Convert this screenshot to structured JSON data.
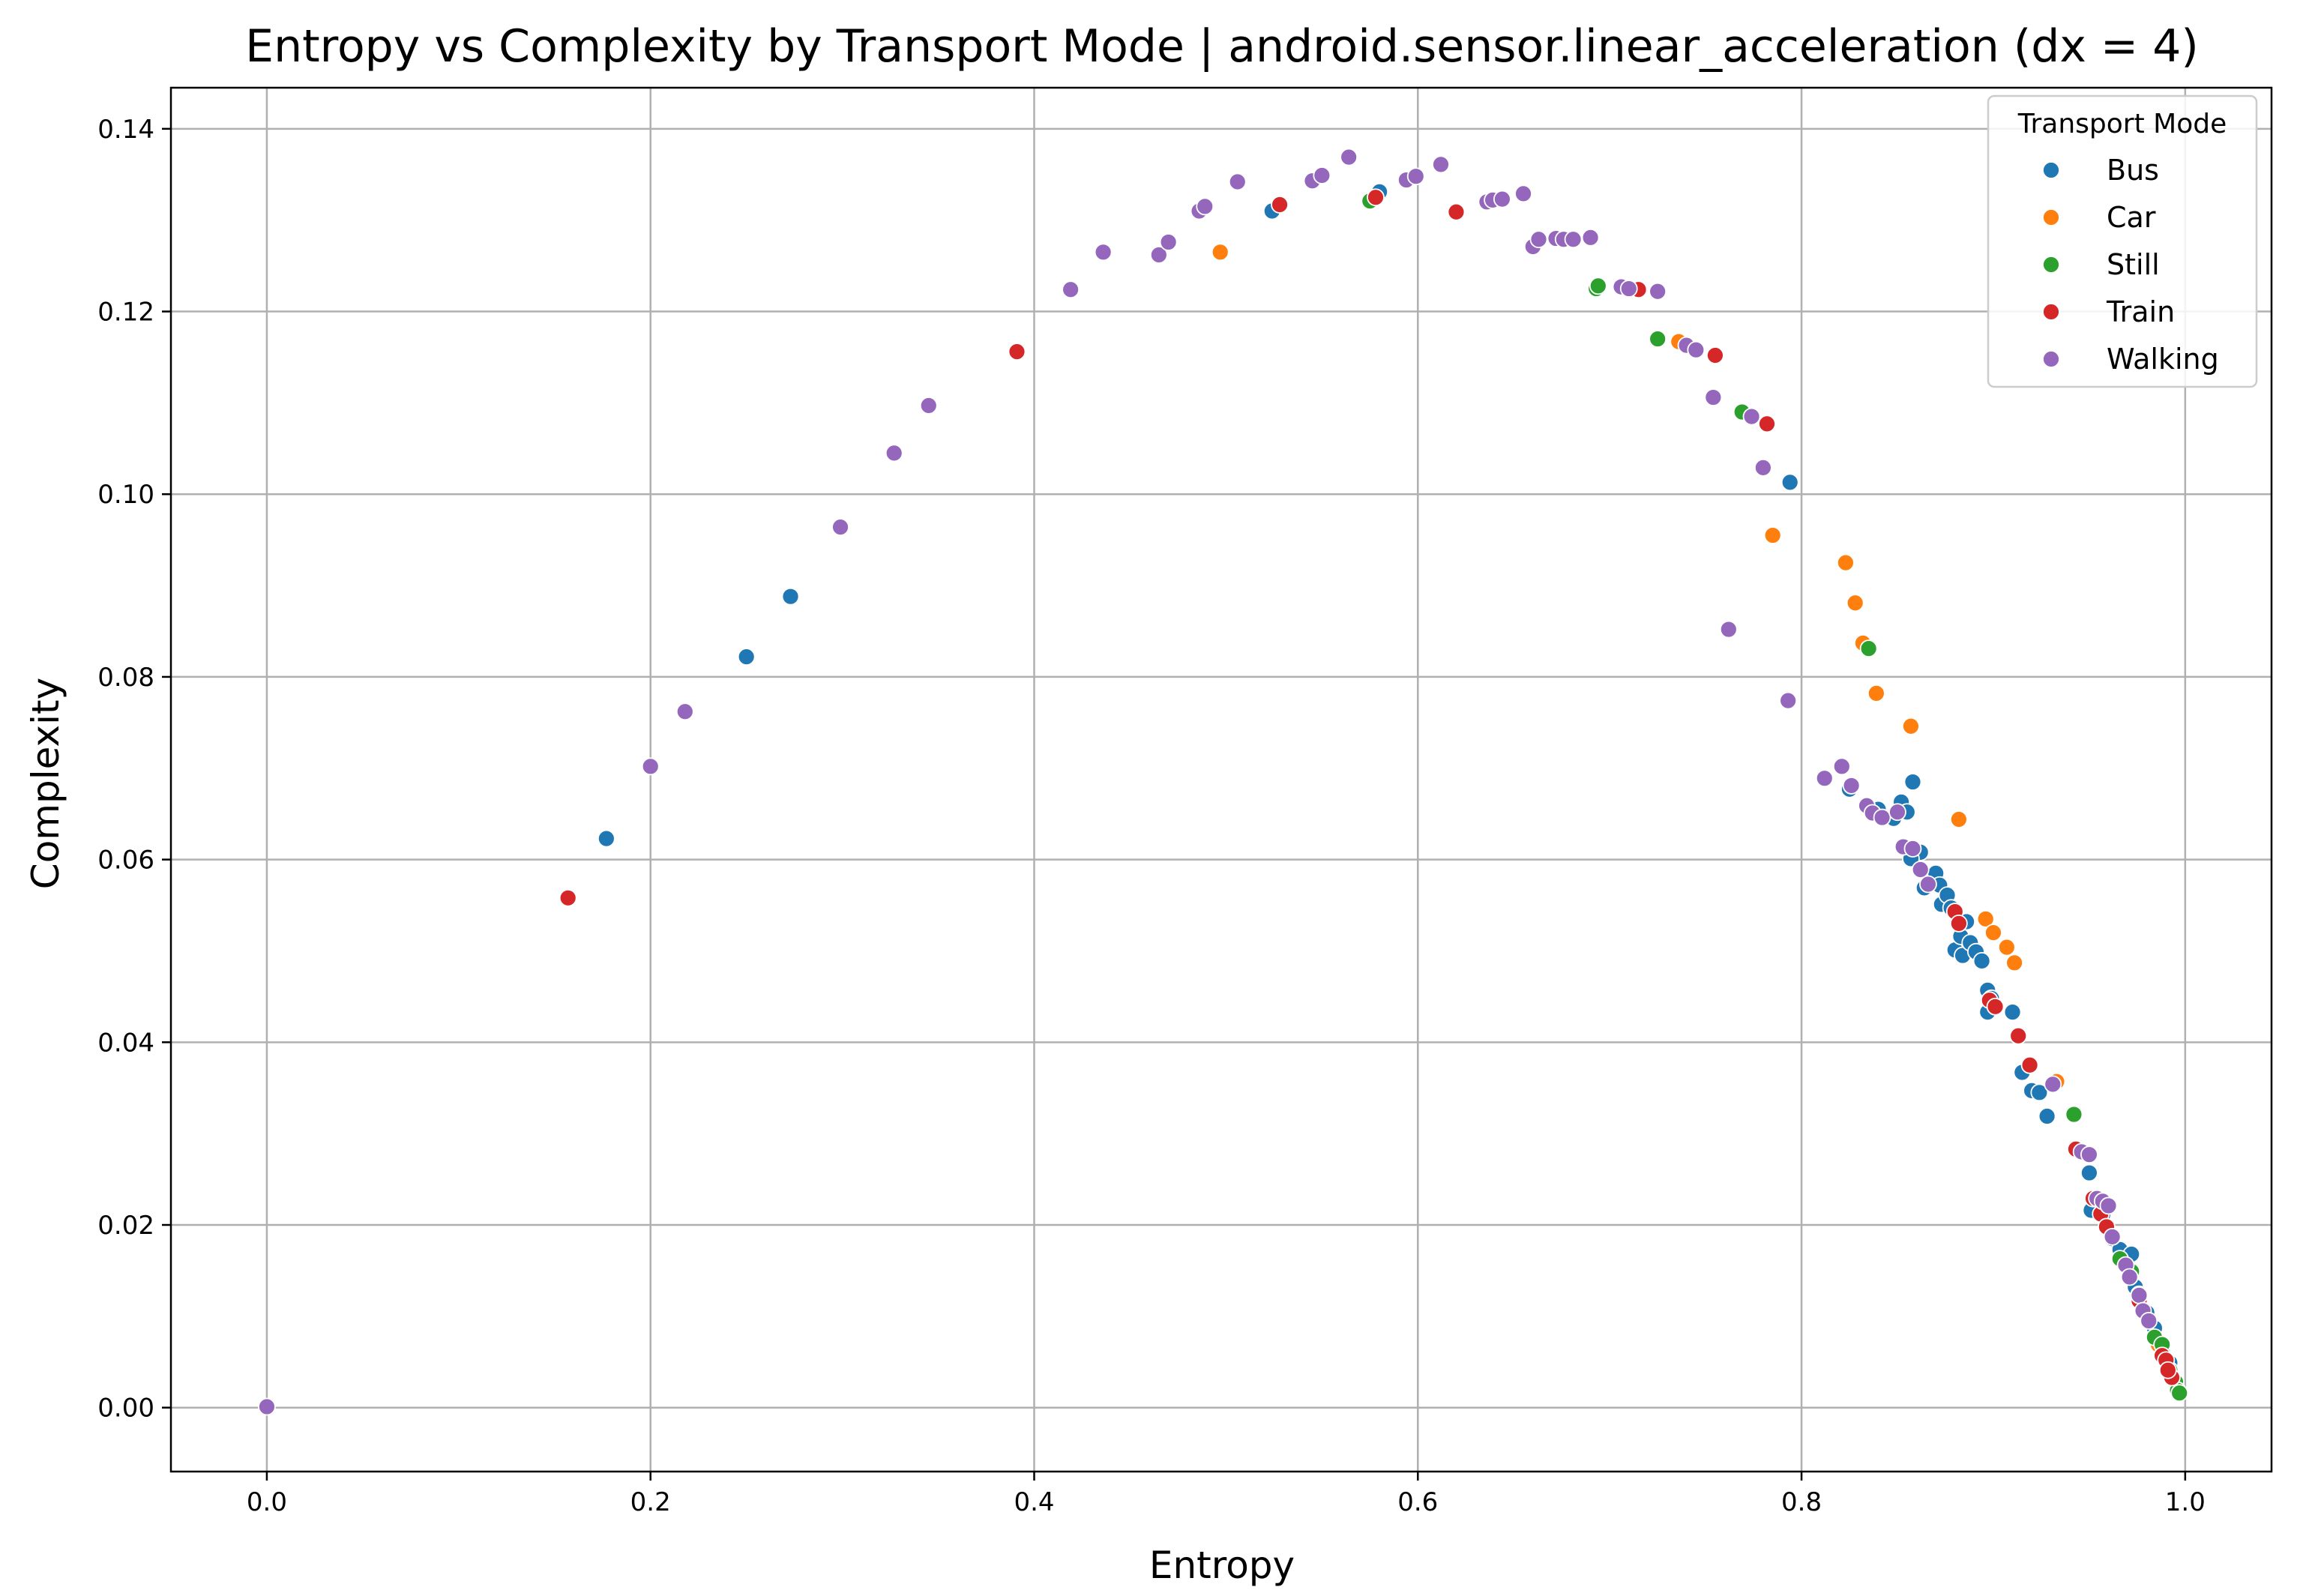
{
  "chart_data": {
    "type": "scatter",
    "title": "Entropy vs Complexity by Transport Mode | android.sensor.linear_acceleration (dx = 4)",
    "xlabel": "Entropy",
    "ylabel": "Complexity",
    "xlim": [
      -0.05,
      1.045
    ],
    "ylim": [
      -0.007,
      0.1445
    ],
    "xticks": [
      0.0,
      0.2,
      0.4,
      0.6,
      0.8,
      1.0
    ],
    "xtick_labels": [
      "0.0",
      "0.2",
      "0.4",
      "0.6",
      "0.8",
      "1.0"
    ],
    "yticks": [
      0.0,
      0.02,
      0.04,
      0.06,
      0.08,
      0.1,
      0.12,
      0.14
    ],
    "ytick_labels": [
      "0.00",
      "0.02",
      "0.04",
      "0.06",
      "0.08",
      "0.10",
      "0.12",
      "0.14"
    ],
    "grid": true,
    "legend": {
      "title": "Transport Mode",
      "position": "top-right"
    },
    "series": [
      {
        "name": "Bus",
        "color": "#1f77b4",
        "points": [
          [
            0.177,
            0.0623
          ],
          [
            0.25,
            0.0822
          ],
          [
            0.273,
            0.0888
          ],
          [
            0.524,
            0.131
          ],
          [
            0.58,
            0.1331
          ],
          [
            0.794,
            0.1013
          ],
          [
            0.825,
            0.0677
          ],
          [
            0.84,
            0.0655
          ],
          [
            0.848,
            0.0645
          ],
          [
            0.852,
            0.0663
          ],
          [
            0.855,
            0.0652
          ],
          [
            0.858,
            0.0685
          ],
          [
            0.862,
            0.0608
          ],
          [
            0.857,
            0.0601
          ],
          [
            0.864,
            0.0569
          ],
          [
            0.87,
            0.0585
          ],
          [
            0.872,
            0.0572
          ],
          [
            0.873,
            0.0551
          ],
          [
            0.876,
            0.0561
          ],
          [
            0.878,
            0.0547
          ],
          [
            0.88,
            0.0501
          ],
          [
            0.883,
            0.0516
          ],
          [
            0.886,
            0.0532
          ],
          [
            0.884,
            0.0495
          ],
          [
            0.888,
            0.0509
          ],
          [
            0.891,
            0.0499
          ],
          [
            0.894,
            0.0489
          ],
          [
            0.897,
            0.0457
          ],
          [
            0.899,
            0.0448
          ],
          [
            0.897,
            0.0433
          ],
          [
            0.91,
            0.0433
          ],
          [
            0.915,
            0.0367
          ],
          [
            0.92,
            0.0347
          ],
          [
            0.924,
            0.0345
          ],
          [
            0.928,
            0.0319
          ],
          [
            0.95,
            0.0257
          ],
          [
            0.951,
            0.0216
          ],
          [
            0.954,
            0.0229
          ],
          [
            0.957,
            0.0211
          ],
          [
            0.962,
            0.0185
          ],
          [
            0.966,
            0.0173
          ],
          [
            0.969,
            0.0162
          ],
          [
            0.972,
            0.0168
          ],
          [
            0.974,
            0.0132
          ],
          [
            0.98,
            0.0104
          ],
          [
            0.984,
            0.0087
          ],
          [
            0.988,
            0.0062
          ],
          [
            0.992,
            0.0049
          ]
        ]
      },
      {
        "name": "Car",
        "color": "#ff7f0e",
        "points": [
          [
            0.497,
            0.1265
          ],
          [
            0.736,
            0.1167
          ],
          [
            0.785,
            0.0955
          ],
          [
            0.823,
            0.0925
          ],
          [
            0.828,
            0.0881
          ],
          [
            0.832,
            0.0837
          ],
          [
            0.839,
            0.0782
          ],
          [
            0.857,
            0.0746
          ],
          [
            0.882,
            0.0644
          ],
          [
            0.896,
            0.0535
          ],
          [
            0.9,
            0.052
          ],
          [
            0.907,
            0.0504
          ],
          [
            0.911,
            0.0487
          ],
          [
            0.933,
            0.0357
          ],
          [
            0.968,
            0.0157
          ],
          [
            0.976,
            0.0124
          ],
          [
            0.986,
            0.0069
          ]
        ]
      },
      {
        "name": "Still",
        "color": "#2ca02c",
        "points": [
          [
            0.575,
            0.1321
          ],
          [
            0.693,
            0.1225
          ],
          [
            0.694,
            0.1228
          ],
          [
            0.725,
            0.117
          ],
          [
            0.769,
            0.109
          ],
          [
            0.835,
            0.0831
          ],
          [
            0.942,
            0.0321
          ],
          [
            0.966,
            0.0163
          ],
          [
            0.972,
            0.0149
          ],
          [
            0.976,
            0.0121
          ],
          [
            0.984,
            0.0077
          ],
          [
            0.988,
            0.0069
          ],
          [
            0.992,
            0.0041
          ],
          [
            0.995,
            0.0028
          ],
          [
            0.996,
            0.0019
          ],
          [
            0.997,
            0.0016
          ],
          [
            0.99,
            0.0052
          ]
        ]
      },
      {
        "name": "Train",
        "color": "#d62728",
        "points": [
          [
            0.157,
            0.0558
          ],
          [
            0.391,
            0.1156
          ],
          [
            0.528,
            0.1317
          ],
          [
            0.578,
            0.1325
          ],
          [
            0.62,
            0.1309
          ],
          [
            0.715,
            0.1224
          ],
          [
            0.755,
            0.1152
          ],
          [
            0.782,
            0.1077
          ],
          [
            0.88,
            0.0543
          ],
          [
            0.882,
            0.053
          ],
          [
            0.898,
            0.0446
          ],
          [
            0.901,
            0.0439
          ],
          [
            0.913,
            0.0407
          ],
          [
            0.919,
            0.0375
          ],
          [
            0.943,
            0.0283
          ],
          [
            0.952,
            0.0229
          ],
          [
            0.956,
            0.0212
          ],
          [
            0.959,
            0.0198
          ],
          [
            0.976,
            0.0117
          ],
          [
            0.988,
            0.0057
          ],
          [
            0.99,
            0.0052
          ],
          [
            0.993,
            0.0033
          ],
          [
            0.991,
            0.0041
          ]
        ]
      },
      {
        "name": "Walking",
        "color": "#9467bd",
        "points": [
          [
            0.0,
            0.0001
          ],
          [
            0.2,
            0.0702
          ],
          [
            0.218,
            0.0762
          ],
          [
            0.299,
            0.0964
          ],
          [
            0.327,
            0.1045
          ],
          [
            0.345,
            0.1097
          ],
          [
            0.419,
            0.1224
          ],
          [
            0.436,
            0.1265
          ],
          [
            0.465,
            0.1262
          ],
          [
            0.47,
            0.1276
          ],
          [
            0.486,
            0.131
          ],
          [
            0.489,
            0.1315
          ],
          [
            0.506,
            0.1342
          ],
          [
            0.545,
            0.1343
          ],
          [
            0.55,
            0.1349
          ],
          [
            0.564,
            0.1369
          ],
          [
            0.594,
            0.1344
          ],
          [
            0.599,
            0.1348
          ],
          [
            0.612,
            0.1361
          ],
          [
            0.636,
            0.132
          ],
          [
            0.639,
            0.1322
          ],
          [
            0.644,
            0.1323
          ],
          [
            0.655,
            0.1329
          ],
          [
            0.66,
            0.1271
          ],
          [
            0.663,
            0.1279
          ],
          [
            0.672,
            0.128
          ],
          [
            0.676,
            0.1279
          ],
          [
            0.681,
            0.1279
          ],
          [
            0.69,
            0.1281
          ],
          [
            0.706,
            0.1227
          ],
          [
            0.71,
            0.1225
          ],
          [
            0.725,
            0.1222
          ],
          [
            0.74,
            0.1163
          ],
          [
            0.745,
            0.1158
          ],
          [
            0.754,
            0.1106
          ],
          [
            0.762,
            0.0852
          ],
          [
            0.774,
            0.1085
          ],
          [
            0.78,
            0.1029
          ],
          [
            0.793,
            0.0774
          ],
          [
            0.812,
            0.0689
          ],
          [
            0.821,
            0.0702
          ],
          [
            0.826,
            0.0681
          ],
          [
            0.834,
            0.0659
          ],
          [
            0.837,
            0.0651
          ],
          [
            0.842,
            0.0646
          ],
          [
            0.85,
            0.0652
          ],
          [
            0.853,
            0.0614
          ],
          [
            0.858,
            0.0612
          ],
          [
            0.862,
            0.0589
          ],
          [
            0.866,
            0.0573
          ],
          [
            0.931,
            0.0354
          ],
          [
            0.946,
            0.028
          ],
          [
            0.95,
            0.0277
          ],
          [
            0.954,
            0.0229
          ],
          [
            0.957,
            0.0226
          ],
          [
            0.96,
            0.0221
          ],
          [
            0.962,
            0.0187
          ],
          [
            0.969,
            0.0156
          ],
          [
            0.971,
            0.0143
          ],
          [
            0.976,
            0.0123
          ],
          [
            0.978,
            0.0106
          ],
          [
            0.981,
            0.0095
          ]
        ]
      }
    ]
  }
}
